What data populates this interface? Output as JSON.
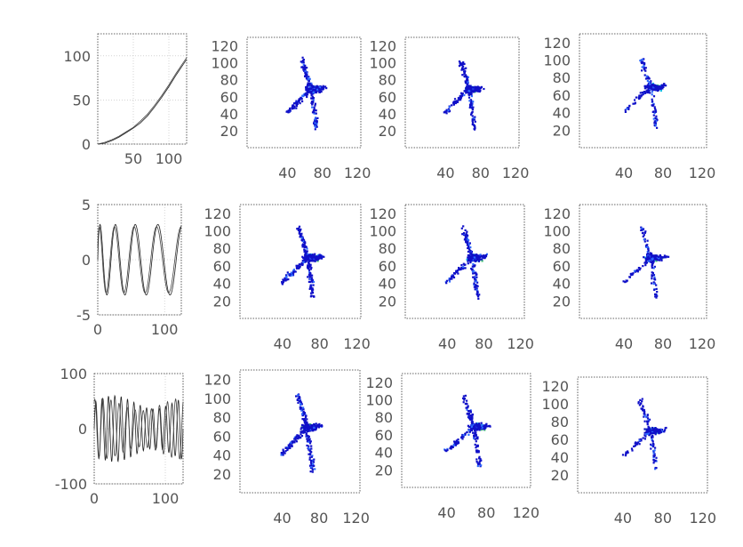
{
  "chart_data": [
    {
      "panel": "row1-line",
      "type": "line",
      "xlim": [
        0,
        125
      ],
      "ylim": [
        0,
        125
      ],
      "xticks": [
        50,
        100
      ],
      "xtick_labels": [
        "50",
        "100"
      ],
      "yticks": [
        0,
        50,
        100
      ],
      "ytick_labels": [
        "0",
        "50",
        "100"
      ],
      "grid": true,
      "series": [
        {
          "x": [
            0,
            10,
            20,
            30,
            40,
            50,
            60,
            70,
            80,
            90,
            100,
            110,
            120,
            125
          ],
          "y": [
            0,
            1,
            4,
            8,
            13,
            18,
            24,
            32,
            42,
            53,
            65,
            78,
            90,
            96
          ]
        },
        {
          "x": [
            0,
            10,
            20,
            30,
            40,
            50,
            60,
            70,
            80,
            90,
            100,
            110,
            120,
            125
          ],
          "y": [
            0,
            2,
            5,
            9,
            14,
            19,
            26,
            34,
            44,
            55,
            67,
            80,
            92,
            98
          ]
        }
      ]
    },
    {
      "panel": "row2-line",
      "type": "line",
      "xlim": [
        0,
        125
      ],
      "ylim": [
        -5,
        5
      ],
      "xticks": [
        0,
        100
      ],
      "xtick_labels": [
        "0",
        "100"
      ],
      "yticks": [
        -5,
        0,
        5
      ],
      "ytick_labels": [
        "-5",
        "0",
        "5"
      ],
      "grid": true,
      "series": [
        {
          "function": "sine-chirp",
          "amplitude": 3.2,
          "x_start": 0,
          "x_end": 125,
          "cycles": 4.2
        },
        {
          "function": "sine-chirp",
          "amplitude": 3.0,
          "x_start": 0,
          "x_end": 125,
          "cycles": 4.2,
          "phase": 0.35
        }
      ]
    },
    {
      "panel": "row3-line",
      "type": "line",
      "xlim": [
        0,
        125
      ],
      "ylim": [
        -100,
        100
      ],
      "xticks": [
        0,
        100
      ],
      "xtick_labels": [
        "0",
        "100"
      ],
      "yticks": [
        -100,
        0,
        100
      ],
      "ytick_labels": [
        "-100",
        "0",
        "100"
      ],
      "grid": true,
      "series": [
        {
          "function": "dense-oscillation",
          "amplitude": 60,
          "x_start": 0,
          "x_end": 125,
          "cycles": 14
        },
        {
          "function": "dense-oscillation",
          "amplitude": 55,
          "x_start": 0,
          "x_end": 125,
          "cycles": 11,
          "phase": 1.1
        }
      ]
    },
    {
      "panel": "scatter-grid",
      "type": "heatmap",
      "rows": 3,
      "cols": 3,
      "xlim": [
        0,
        130
      ],
      "ylim": [
        0,
        130
      ],
      "xticks": [
        40,
        80,
        120
      ],
      "xtick_labels": [
        "40",
        "80",
        "120"
      ],
      "yticks": [
        20,
        40,
        60,
        80,
        100,
        120
      ],
      "ytick_labels": [
        "20",
        "40",
        "60",
        "80",
        "100",
        "120"
      ],
      "grid": false,
      "colors": [
        "#1010c8",
        "#2e6bff",
        "#19c3e6",
        "#3fbf73"
      ],
      "shape": {
        "center": [
          72,
          70
        ],
        "arms": [
          {
            "from": [
              72,
              70
            ],
            "to": [
              62,
              105
            ]
          },
          {
            "from": [
              72,
              70
            ],
            "to": [
              44,
              42
            ]
          },
          {
            "from": [
              72,
              70
            ],
            "to": [
              78,
              24
            ]
          },
          {
            "from": [
              72,
              70
            ],
            "to": [
              88,
              72
            ]
          }
        ]
      },
      "density_by_column": [
        1.0,
        0.85,
        0.55
      ]
    }
  ]
}
